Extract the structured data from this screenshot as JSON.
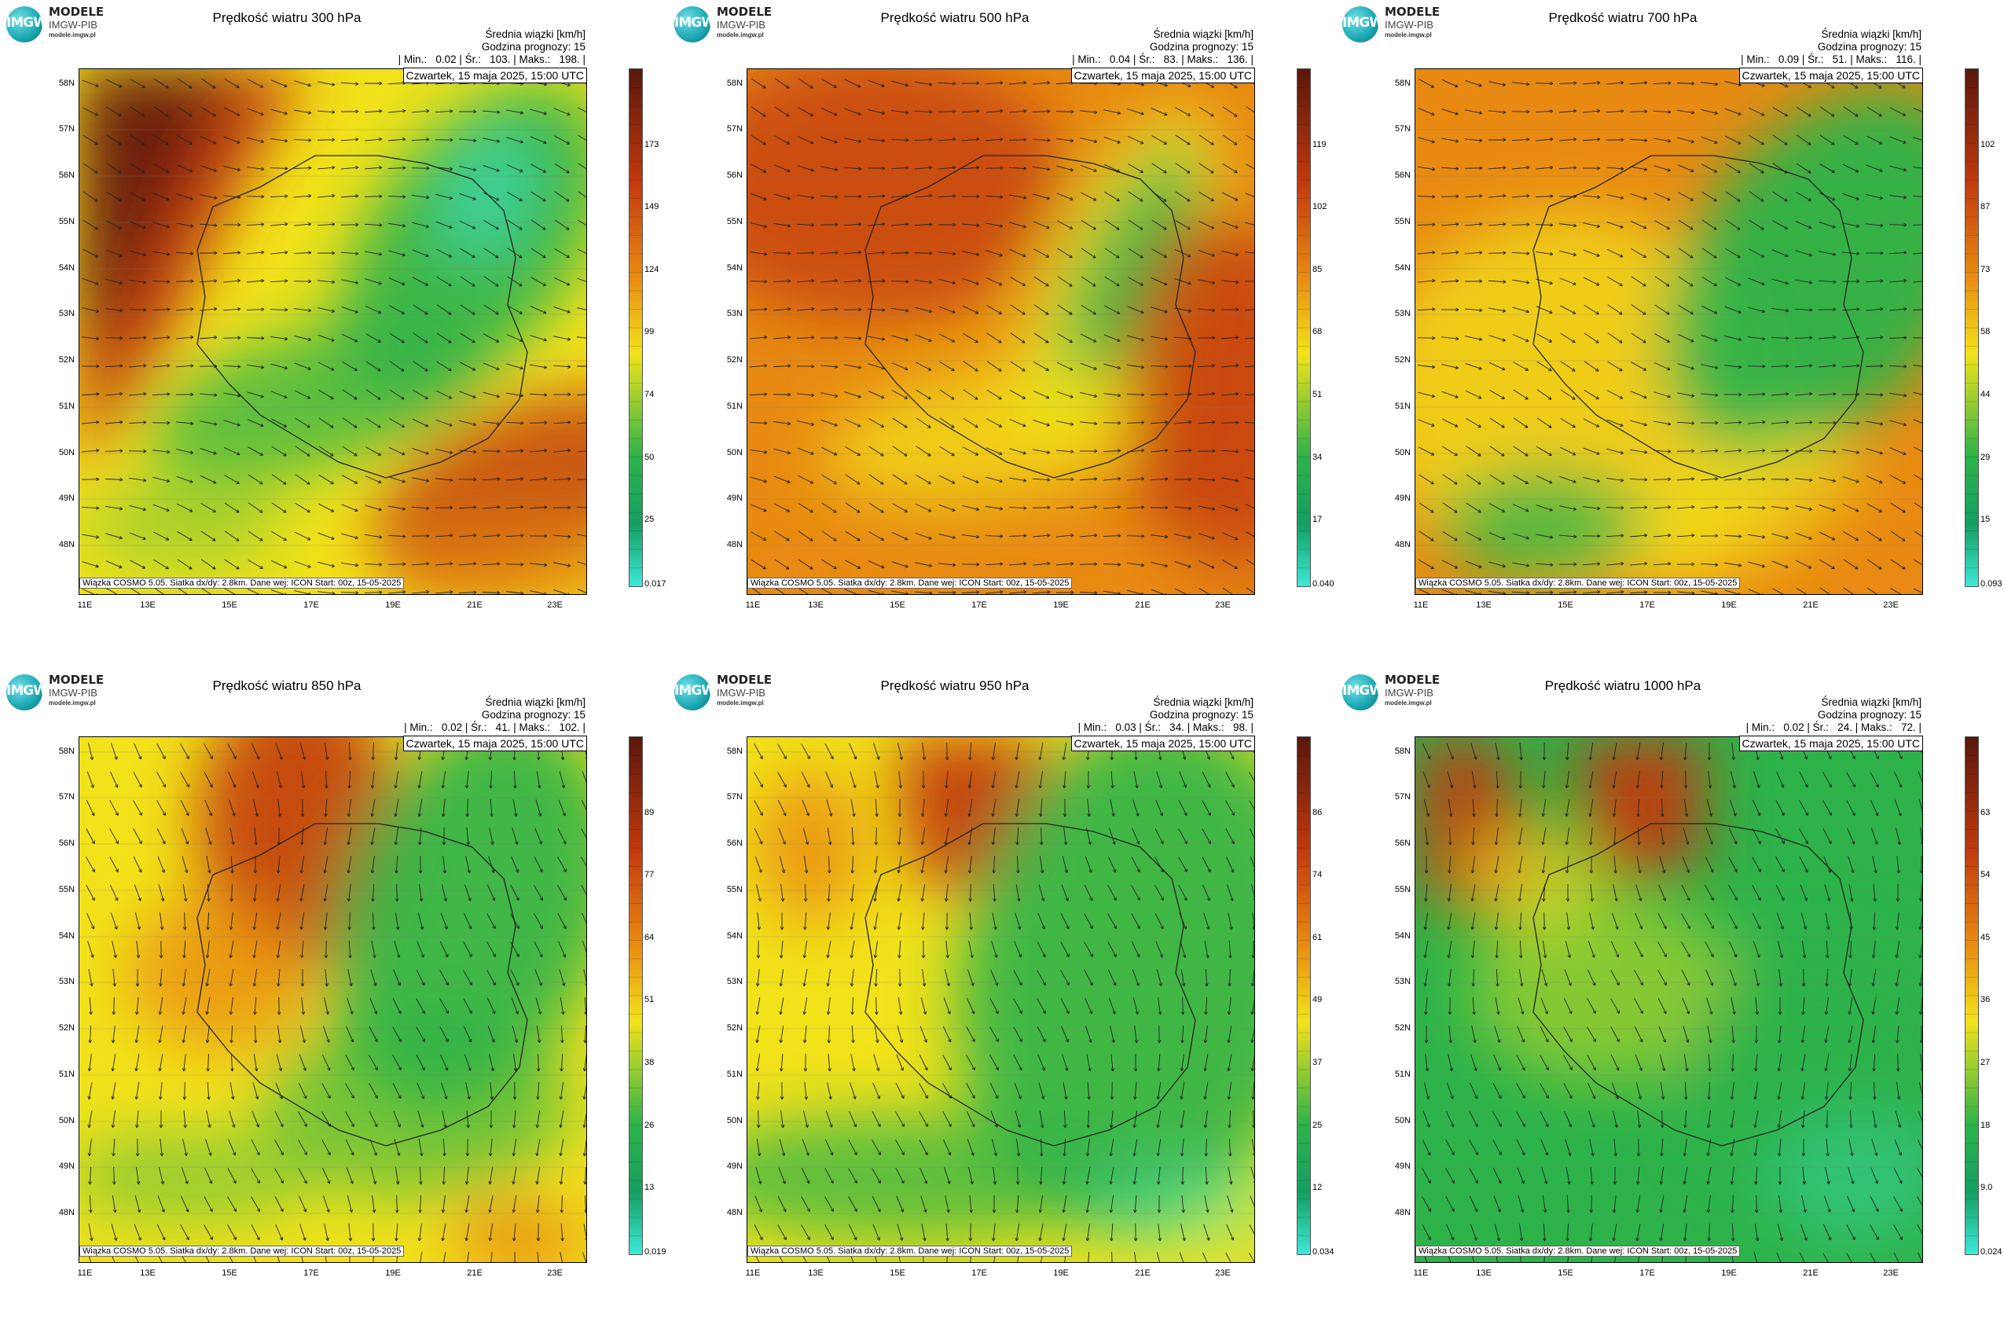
{
  "brand": {
    "line1": "MODELE",
    "line2": "IMGW-PIB",
    "line3": "modele.imgw.pl",
    "logo_text": "IMGW"
  },
  "common": {
    "info_line1": "Średnia wiązki [km/h]",
    "info_line2": "Godzina prognozy: 15",
    "date": "Czwartek, 15 maja 2025, 15:00 UTC",
    "footer": "Wiązka COSMO 5.05. Siatka dx/dy: 2.8km. Dane wej: ICON Start: 00z, 15-05-2025",
    "lat_labels": [
      "58N",
      "57N",
      "56N",
      "55N",
      "54N",
      "53N",
      "52N",
      "51N",
      "50N",
      "49N",
      "48N"
    ],
    "lon_labels": [
      "11E",
      "13E",
      "15E",
      "17E",
      "19E",
      "21E",
      "23E"
    ]
  },
  "colors": {
    "low": "#3ee8d8",
    "green": "#2db34a",
    "yellow": "#f2e21a",
    "orange": "#e88a12",
    "red": "#c23a0e",
    "darkred": "#5a170c"
  },
  "panels": [
    {
      "title": "Prędkość wiatru 300 hPa",
      "stats": "| Min.:   0.02 | Śr.:   103. | Maks.:   198. |",
      "cbar_labels": [
        "173",
        "149",
        "124",
        "99",
        "74",
        "50",
        "25",
        "0.017"
      ]
    },
    {
      "title": "Prędkość wiatru 500 hPa",
      "stats": "| Min.:   0.04 | Śr.:   83. | Maks.:   136. |",
      "cbar_labels": [
        "119",
        "102",
        "85",
        "68",
        "51",
        "34",
        "17",
        "0.040"
      ]
    },
    {
      "title": "Prędkość wiatru 700 hPa",
      "stats": "| Min.:   0.09 | Śr.:   51. | Maks.:   116. |",
      "cbar_labels": [
        "102",
        "87",
        "73",
        "58",
        "44",
        "29",
        "15",
        "0.093"
      ]
    },
    {
      "title": "Prędkość wiatru 850 hPa",
      "stats": "| Min.:   0.02 | Śr.:   41. | Maks.:   102. |",
      "cbar_labels": [
        "89",
        "77",
        "64",
        "51",
        "38",
        "26",
        "13",
        "0.019"
      ]
    },
    {
      "title": "Prędkość wiatru 950 hPa",
      "stats": "| Min.:   0.03 | Śr.:   34. | Maks.:   98. |",
      "cbar_labels": [
        "86",
        "74",
        "61",
        "49",
        "37",
        "25",
        "12",
        "0.034"
      ]
    },
    {
      "title": "Prędkość wiatru 1000 hPa",
      "stats": "| Min.:   0.02 | Śr.:   24. | Maks.:   72. |",
      "cbar_labels": [
        "63",
        "54",
        "45",
        "36",
        "27",
        "18",
        "9.0",
        "0.024"
      ]
    }
  ]
}
